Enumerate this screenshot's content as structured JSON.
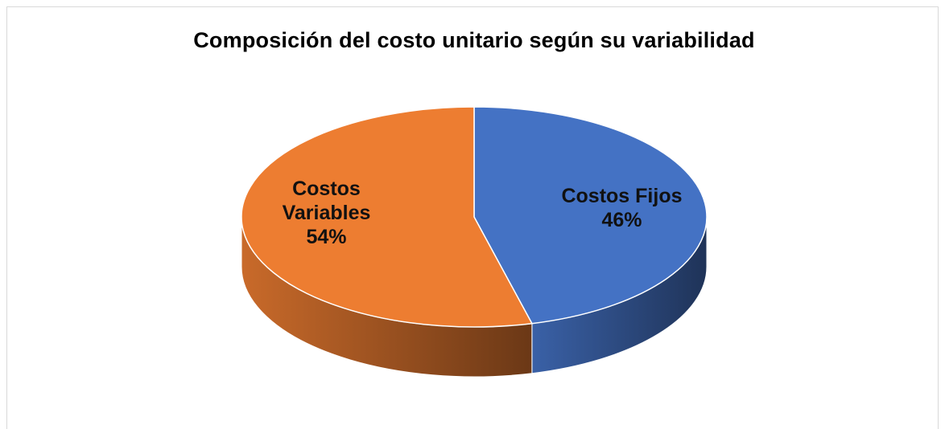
{
  "chart_data": {
    "type": "pie",
    "title": "Composición del costo unitario según su variabilidad",
    "categories": [
      "Costos Fijos",
      "Costos Variables"
    ],
    "values": [
      46,
      54
    ],
    "value_labels": [
      "46%",
      "54%"
    ],
    "colors": [
      "#4472c4",
      "#ed7d31"
    ],
    "three_d": true
  }
}
